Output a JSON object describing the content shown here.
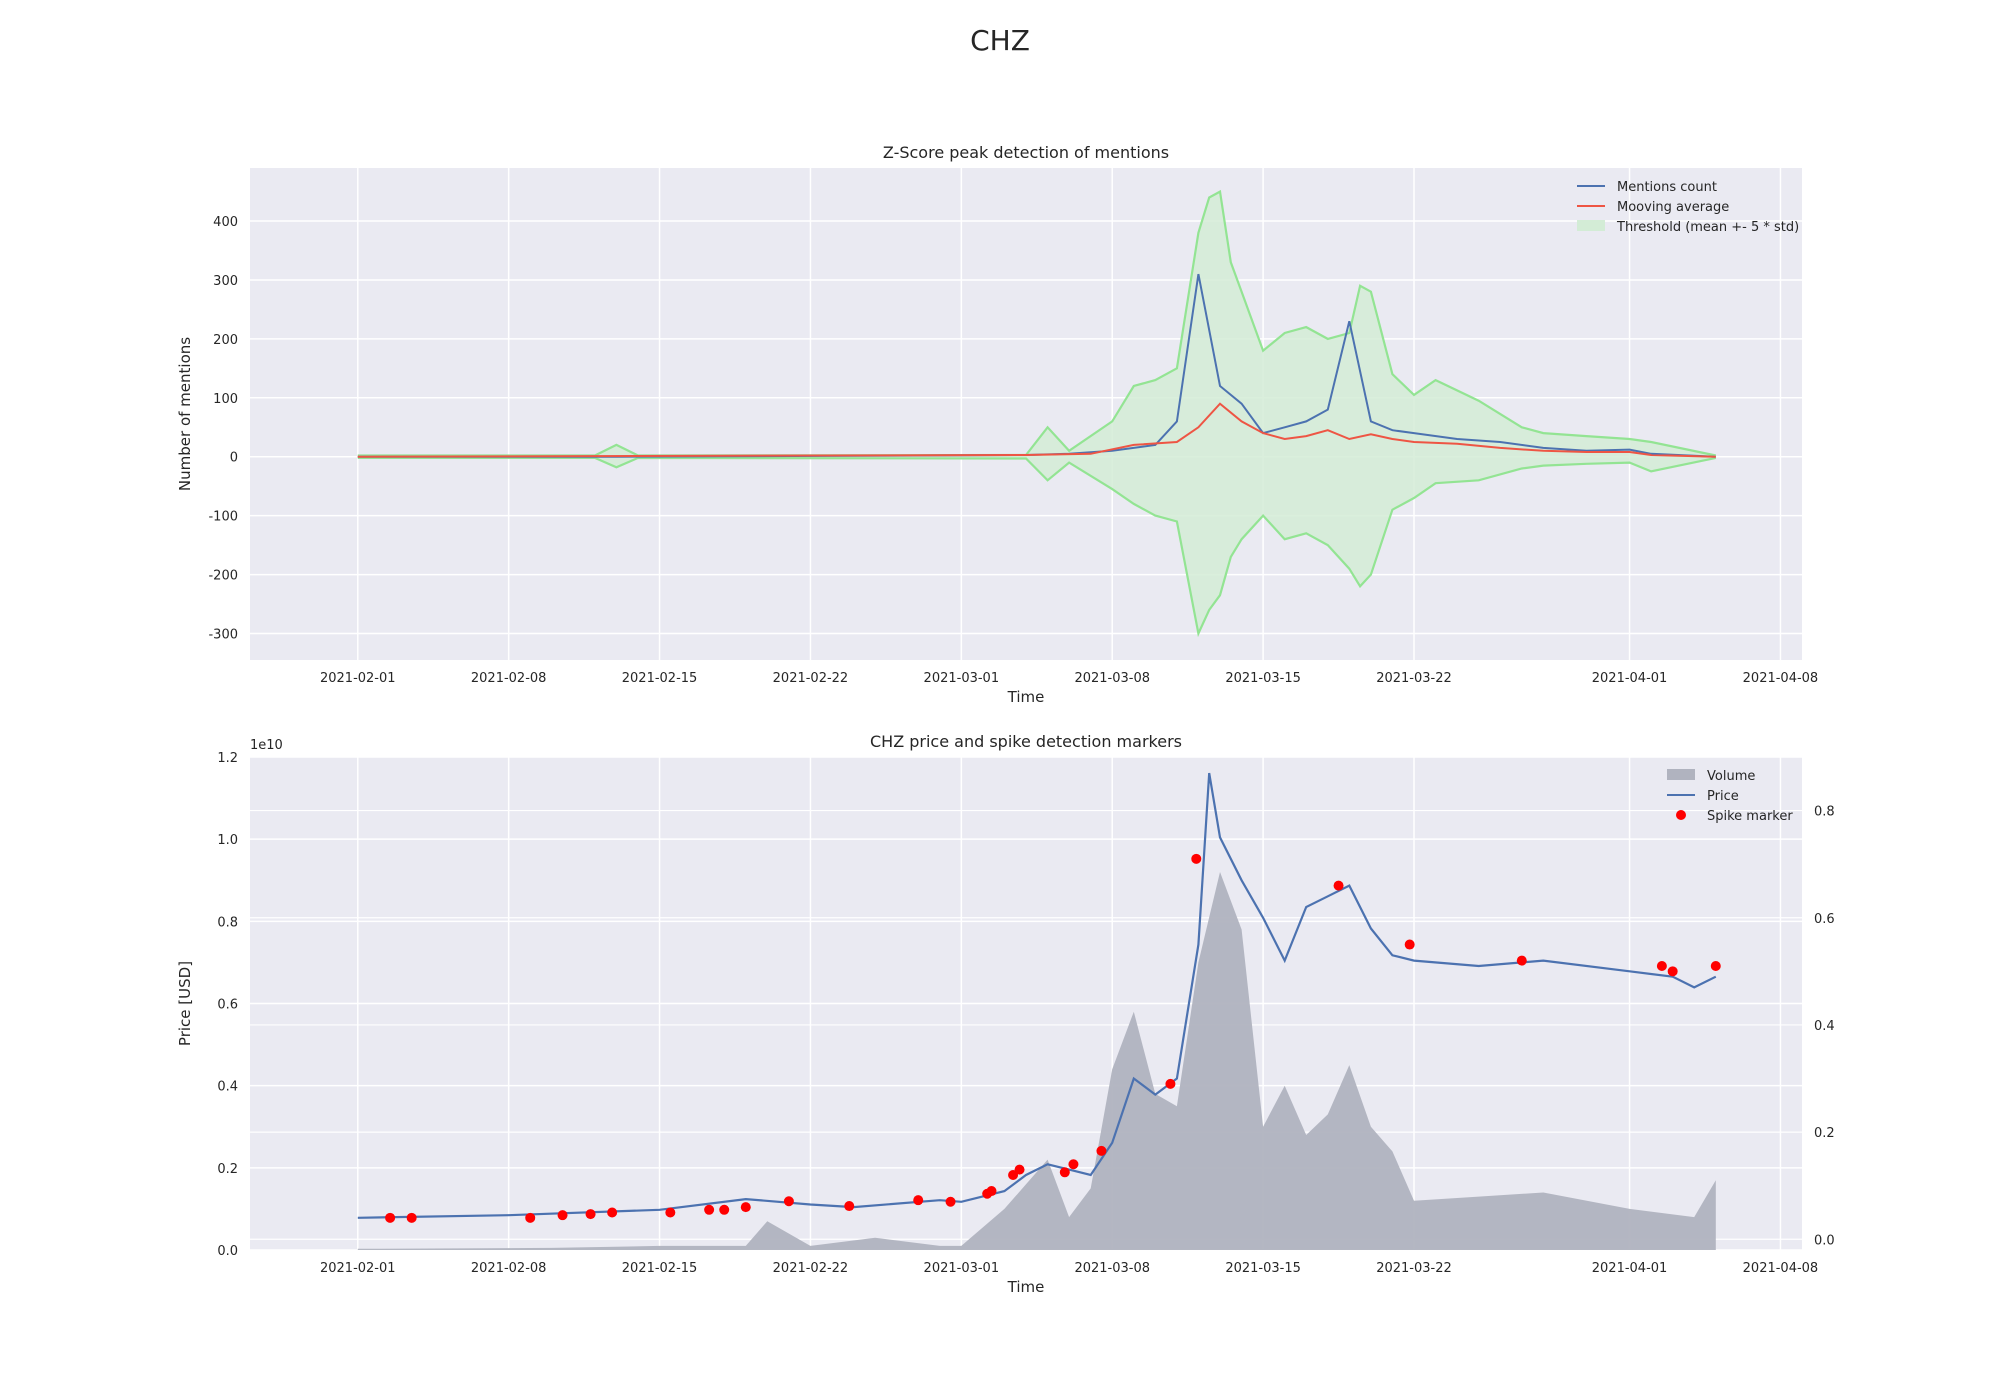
{
  "figure": {
    "title": "CHZ"
  },
  "colors": {
    "axes_bg": "#eaeaf2",
    "grid": "#ffffff",
    "mentions": "#4c72b0",
    "moving_avg": "#ee5544",
    "threshold_line": "#93e493",
    "threshold_fill": "#d3ecd6",
    "price": "#4c72b0",
    "volume": "#b0b3bf",
    "spike": "#ff0000"
  },
  "chart_data": [
    {
      "type": "line",
      "title": "Z-Score peak detection of mentions",
      "xlabel": "Time",
      "ylabel": "Number of mentions",
      "x_range": [
        "2021-01-27",
        "2021-04-09"
      ],
      "ylim": [
        -345,
        490
      ],
      "x_ticks": [
        "2021-02-01",
        "2021-02-08",
        "2021-02-15",
        "2021-02-22",
        "2021-03-01",
        "2021-03-08",
        "2021-03-15",
        "2021-03-22",
        "2021-04-01",
        "2021-04-08"
      ],
      "y_ticks": [
        -300,
        -200,
        -100,
        0,
        100,
        200,
        300,
        400
      ],
      "grid": true,
      "legend_position": "top-right",
      "legend": [
        "Mentions count",
        "Mooving average",
        "Threshold (mean +- 5 * std)"
      ],
      "series": [
        {
          "name": "Mentions count",
          "x": [
            "2021-02-01",
            "2021-02-13",
            "2021-03-04",
            "2021-03-06",
            "2021-03-08",
            "2021-03-10",
            "2021-03-11",
            "2021-03-12",
            "2021-03-13",
            "2021-03-14",
            "2021-03-15",
            "2021-03-16",
            "2021-03-17",
            "2021-03-18",
            "2021-03-19",
            "2021-03-20",
            "2021-03-21",
            "2021-03-22",
            "2021-03-24",
            "2021-03-26",
            "2021-03-28",
            "2021-03-30",
            "2021-04-01",
            "2021-04-02",
            "2021-04-05"
          ],
          "y": [
            0,
            0,
            3,
            5,
            10,
            20,
            60,
            310,
            120,
            90,
            40,
            50,
            60,
            80,
            230,
            60,
            45,
            40,
            30,
            25,
            15,
            10,
            12,
            5,
            0
          ]
        },
        {
          "name": "Mooving average",
          "x": [
            "2021-02-01",
            "2021-03-04",
            "2021-03-07",
            "2021-03-09",
            "2021-03-11",
            "2021-03-12",
            "2021-03-13",
            "2021-03-14",
            "2021-03-15",
            "2021-03-16",
            "2021-03-17",
            "2021-03-18",
            "2021-03-19",
            "2021-03-20",
            "2021-03-21",
            "2021-03-22",
            "2021-03-24",
            "2021-03-26",
            "2021-03-28",
            "2021-03-30",
            "2021-04-01",
            "2021-04-02",
            "2021-04-05"
          ],
          "y": [
            0,
            3,
            5,
            20,
            25,
            50,
            90,
            60,
            40,
            30,
            35,
            45,
            30,
            38,
            30,
            25,
            22,
            15,
            10,
            8,
            8,
            3,
            0
          ]
        },
        {
          "name": "Threshold (mean +- 5 * std)",
          "x": [
            "2021-02-01",
            "2021-02-12",
            "2021-02-13",
            "2021-02-14",
            "2021-03-04",
            "2021-03-05",
            "2021-03-06",
            "2021-03-08",
            "2021-03-09",
            "2021-03-10",
            "2021-03-11",
            "2021-03-12",
            "2021-03-12.5",
            "2021-03-13",
            "2021-03-13.5",
            "2021-03-14",
            "2021-03-15",
            "2021-03-16",
            "2021-03-17",
            "2021-03-18",
            "2021-03-19",
            "2021-03-19.5",
            "2021-03-20",
            "2021-03-21",
            "2021-03-22",
            "2021-03-23",
            "2021-03-25",
            "2021-03-27",
            "2021-03-28",
            "2021-03-30",
            "2021-04-01",
            "2021-04-02",
            "2021-04-05"
          ],
          "upper": [
            2,
            2,
            20,
            2,
            3,
            50,
            10,
            60,
            120,
            130,
            150,
            380,
            440,
            450,
            330,
            280,
            180,
            210,
            220,
            200,
            210,
            290,
            280,
            140,
            105,
            130,
            95,
            50,
            40,
            35,
            30,
            25,
            2
          ],
          "lower": [
            -2,
            -2,
            -18,
            -2,
            -3,
            -40,
            -10,
            -55,
            -80,
            -100,
            -110,
            -300,
            -260,
            -235,
            -170,
            -140,
            -100,
            -140,
            -130,
            -150,
            -190,
            -220,
            -200,
            -90,
            -70,
            -45,
            -40,
            -20,
            -15,
            -12,
            -10,
            -25,
            -2
          ]
        }
      ]
    },
    {
      "type": "line",
      "title": "CHZ price and spike detection markers",
      "xlabel": "Time",
      "ylabel": "Price [USD]",
      "y_offset_label": "1e10",
      "x_range": [
        "2021-01-27",
        "2021-04-09"
      ],
      "ylim_left": [
        0,
        1.2
      ],
      "ylim_right": [
        -0.02,
        0.9
      ],
      "x_ticks": [
        "2021-02-01",
        "2021-02-08",
        "2021-02-15",
        "2021-02-22",
        "2021-03-01",
        "2021-03-08",
        "2021-03-15",
        "2021-03-22",
        "2021-04-01",
        "2021-04-08"
      ],
      "y_ticks_left": [
        "0.0",
        "0.2",
        "0.4",
        "0.6",
        "0.8",
        "1.0",
        "1.2"
      ],
      "y_ticks_right": [
        "0.0",
        "0.2",
        "0.4",
        "0.6",
        "0.8"
      ],
      "grid": true,
      "legend_position": "top-right",
      "legend": [
        "Volume",
        "Price",
        "Spike marker"
      ],
      "series": [
        {
          "name": "Volume",
          "axis": "left",
          "x": [
            "2021-02-01",
            "2021-02-10",
            "2021-02-15",
            "2021-02-19",
            "2021-02-20",
            "2021-02-22",
            "2021-02-25",
            "2021-02-28",
            "2021-03-01",
            "2021-03-03",
            "2021-03-04",
            "2021-03-05",
            "2021-03-06",
            "2021-03-07",
            "2021-03-08",
            "2021-03-09",
            "2021-03-10",
            "2021-03-11",
            "2021-03-12",
            "2021-03-13",
            "2021-03-14",
            "2021-03-15",
            "2021-03-16",
            "2021-03-17",
            "2021-03-18",
            "2021-03-19",
            "2021-03-20",
            "2021-03-21",
            "2021-03-22",
            "2021-03-25",
            "2021-03-28",
            "2021-04-01",
            "2021-04-04",
            "2021-04-05"
          ],
          "y": [
            0.003,
            0.005,
            0.01,
            0.01,
            0.07,
            0.01,
            0.03,
            0.01,
            0.01,
            0.1,
            0.16,
            0.22,
            0.08,
            0.15,
            0.44,
            0.58,
            0.38,
            0.35,
            0.7,
            0.92,
            0.78,
            0.3,
            0.4,
            0.28,
            0.33,
            0.45,
            0.3,
            0.24,
            0.12,
            0.13,
            0.14,
            0.1,
            0.08,
            0.17
          ]
        },
        {
          "name": "Price",
          "axis": "right",
          "x": [
            "2021-02-01",
            "2021-02-08",
            "2021-02-15",
            "2021-02-19",
            "2021-02-22",
            "2021-02-24",
            "2021-02-28",
            "2021-03-01",
            "2021-03-03",
            "2021-03-04",
            "2021-03-05",
            "2021-03-06",
            "2021-03-07",
            "2021-03-08",
            "2021-03-09",
            "2021-03-10",
            "2021-03-11",
            "2021-03-12",
            "2021-03-12.5",
            "2021-03-13",
            "2021-03-14",
            "2021-03-15",
            "2021-03-16",
            "2021-03-17",
            "2021-03-18",
            "2021-03-19",
            "2021-03-20",
            "2021-03-21",
            "2021-03-22",
            "2021-03-25",
            "2021-03-28",
            "2021-04-01",
            "2021-04-03",
            "2021-04-04",
            "2021-04-05"
          ],
          "y": [
            0.04,
            0.045,
            0.055,
            0.075,
            0.065,
            0.06,
            0.073,
            0.07,
            0.09,
            0.12,
            0.14,
            0.13,
            0.12,
            0.18,
            0.3,
            0.27,
            0.3,
            0.55,
            0.87,
            0.75,
            0.67,
            0.6,
            0.52,
            0.62,
            0.64,
            0.66,
            0.58,
            0.53,
            0.52,
            0.51,
            0.52,
            0.5,
            0.49,
            0.47,
            0.49
          ]
        },
        {
          "name": "Spike marker",
          "axis": "right",
          "x": [
            "2021-02-02.5",
            "2021-02-03.5",
            "2021-02-09",
            "2021-02-10.5",
            "2021-02-11.8",
            "2021-02-12.8",
            "2021-02-15.5",
            "2021-02-17.3",
            "2021-02-18",
            "2021-02-19",
            "2021-02-21",
            "2021-02-23.8",
            "2021-02-27",
            "2021-02-28.5",
            "2021-03-02.2",
            "2021-03-02.4",
            "2021-03-03.4",
            "2021-03-03.7",
            "2021-03-05.8",
            "2021-03-06.2",
            "2021-03-07.5",
            "2021-03-10.7",
            "2021-03-11.9",
            "2021-03-18.5",
            "2021-03-21.8",
            "2021-03-27",
            "2021-04-02.5",
            "2021-04-03",
            "2021-04-05"
          ],
          "y": [
            0.04,
            0.04,
            0.04,
            0.045,
            0.047,
            0.05,
            0.05,
            0.055,
            0.055,
            0.06,
            0.071,
            0.062,
            0.073,
            0.07,
            0.085,
            0.09,
            0.12,
            0.13,
            0.125,
            0.14,
            0.165,
            0.29,
            0.71,
            0.66,
            0.55,
            0.52,
            0.51,
            0.5,
            0.51
          ]
        }
      ]
    }
  ]
}
